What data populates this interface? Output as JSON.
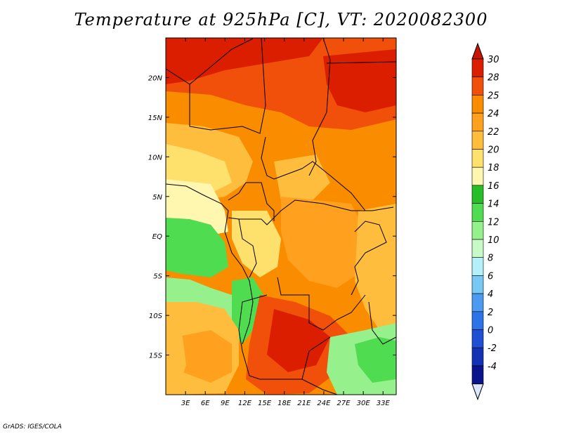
{
  "title": "Temperature at 925hPa [C], VT: 2020082300",
  "credit": "GrADS: IGES/COLA",
  "map": {
    "lon_range": [
      0,
      35
    ],
    "lat_range": [
      -20,
      25
    ],
    "lon_ticks": [
      "3E",
      "6E",
      "9E",
      "12E",
      "15E",
      "18E",
      "21E",
      "24E",
      "27E",
      "30E",
      "33E"
    ],
    "lat_ticks": [
      "20N",
      "15N",
      "10N",
      "5N",
      "EQ",
      "5S",
      "10S",
      "15S"
    ]
  },
  "colorbar": {
    "labels": [
      "30",
      "28",
      "25",
      "24",
      "22",
      "20",
      "18",
      "16",
      "14",
      "12",
      "10",
      "8",
      "6",
      "4",
      "2",
      "0",
      "-2",
      "-4"
    ],
    "colors": [
      "#dc1e00",
      "#f0500a",
      "#fa8c00",
      "#ffa01e",
      "#ffbd3d",
      "#fee06c",
      "#fff6b0",
      "#28be28",
      "#50dc50",
      "#96f08c",
      "#c8fac8",
      "#b4f0fa",
      "#78c8f5",
      "#4b9bf0",
      "#2c73e8",
      "#1e50d4",
      "#1432b4",
      "#0a148c"
    ],
    "top_arrow_color": "#c81400",
    "bottom_arrow_color": "#dce6ff"
  }
}
